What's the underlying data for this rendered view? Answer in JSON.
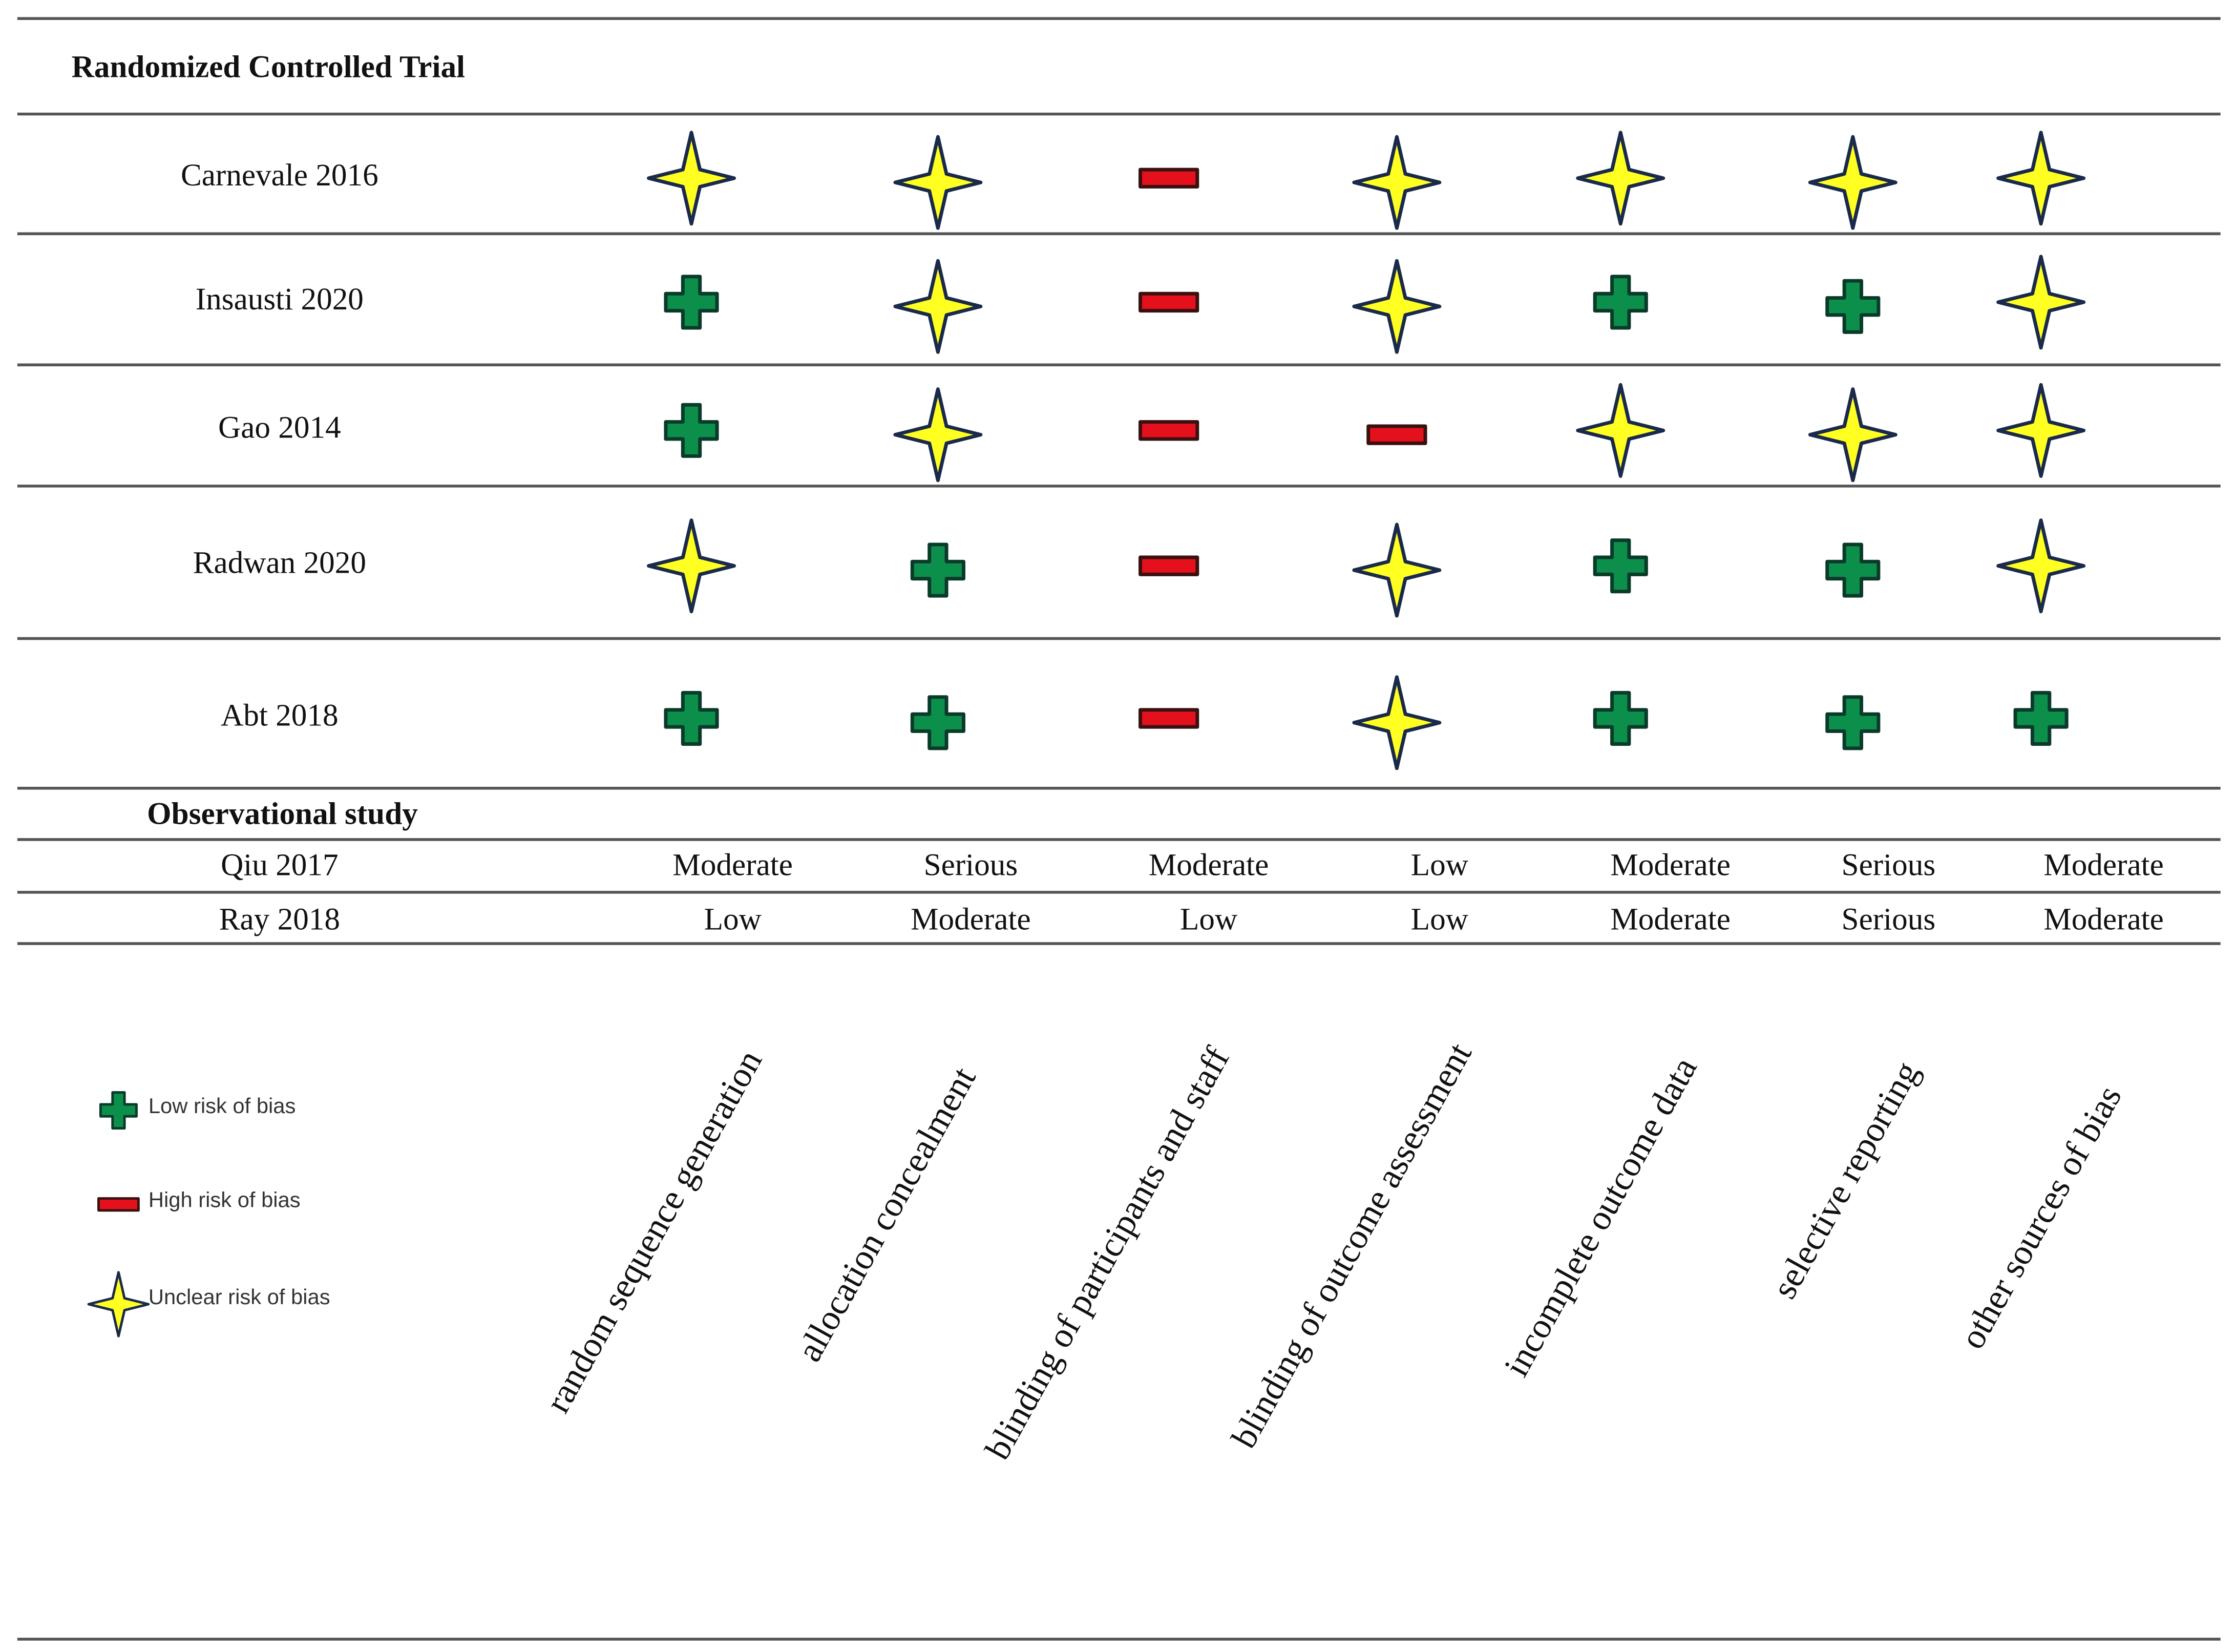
{
  "title": "Randomized Controlled Trial",
  "columns": [
    "random sequence generation",
    "allocation concealment",
    "blinding of participants and staff",
    "blinding of outcome assessment",
    "incomplete outcome data",
    "selective reporting",
    "other sources of bias"
  ],
  "rct": {
    "rows": [
      {
        "study": "Carnevale 2016",
        "cells": [
          "star",
          "star",
          "minus",
          "star",
          "star",
          "star",
          "star"
        ]
      },
      {
        "study": "Insausti 2020",
        "cells": [
          "plus",
          "star",
          "minus",
          "star",
          "plus",
          "plus",
          "star"
        ]
      },
      {
        "study": "Gao 2014",
        "cells": [
          "plus",
          "star",
          "minus",
          "minus",
          "star",
          "star",
          "star"
        ]
      },
      {
        "study": "Radwan 2020",
        "cells": [
          "star",
          "plus",
          "minus",
          "star",
          "plus",
          "plus",
          "star"
        ]
      },
      {
        "study": "Abt 2018",
        "cells": [
          "plus",
          "plus",
          "minus",
          "star",
          "plus",
          "plus",
          "plus"
        ]
      }
    ]
  },
  "observational": {
    "title": "Observational study",
    "rows": [
      {
        "study": "Qiu 2017",
        "cells": [
          "Moderate",
          "Serious",
          "Moderate",
          "Low",
          "Moderate",
          "Serious",
          "Moderate"
        ]
      },
      {
        "study": "Ray 2018",
        "cells": [
          "Low",
          "Moderate",
          "Low",
          "Low",
          "Moderate",
          "Serious",
          "Moderate"
        ]
      }
    ]
  },
  "legend": [
    {
      "symbol": "plus",
      "label": "Low risk of bias"
    },
    {
      "symbol": "minus",
      "label": "High risk of bias"
    },
    {
      "symbol": "star",
      "label": "Unclear risk of bias"
    }
  ]
}
